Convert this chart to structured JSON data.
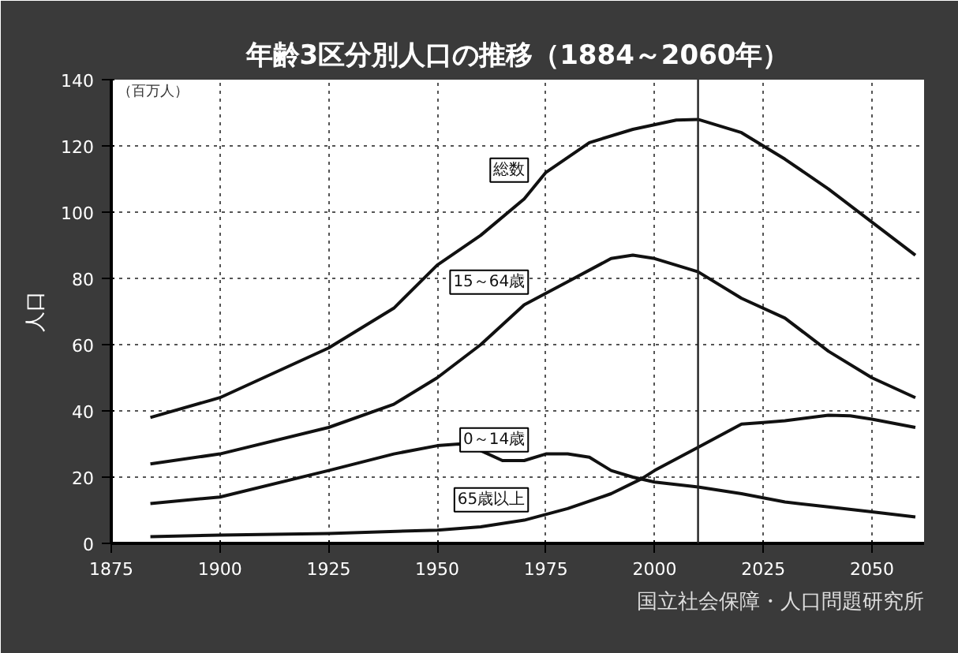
{
  "chart_data": {
    "type": "line",
    "title": "年齢3区分別人口の推移（1884～2060年）",
    "ylabel": "人口",
    "xlim": [
      1875,
      2062
    ],
    "ylim": [
      0,
      140
    ],
    "xticks": [
      1875,
      1900,
      1925,
      1950,
      1975,
      2000,
      2025,
      2050
    ],
    "yticks": [
      0,
      20,
      40,
      60,
      80,
      100,
      120,
      140
    ],
    "grid": true,
    "marker": "none",
    "line_style": "solid",
    "series": [
      {
        "name": "総数",
        "color": "#111111",
        "x": [
          1884,
          1900,
          1925,
          1940,
          1950,
          1960,
          1970,
          1975,
          1985,
          1995,
          2005,
          2010,
          2020,
          2030,
          2040,
          2050,
          2060
        ],
        "values": [
          38,
          44,
          59,
          71,
          84,
          93,
          104,
          112,
          121,
          125,
          127.8,
          128,
          124,
          116,
          107,
          97,
          87
        ]
      },
      {
        "name": "15～64歳",
        "color": "#111111",
        "x": [
          1884,
          1900,
          1925,
          1940,
          1950,
          1960,
          1970,
          1980,
          1990,
          1995,
          2000,
          2010,
          2020,
          2030,
          2040,
          2050,
          2060
        ],
        "values": [
          24,
          27,
          35,
          42,
          50,
          60,
          72,
          79,
          86,
          87,
          86,
          82,
          74,
          68,
          58,
          50,
          44
        ]
      },
      {
        "name": "0～14歳",
        "color": "#111111",
        "x": [
          1884,
          1900,
          1925,
          1940,
          1950,
          1955,
          1960,
          1965,
          1970,
          1975,
          1980,
          1985,
          1990,
          1995,
          2000,
          2010,
          2020,
          2030,
          2040,
          2050,
          2060
        ],
        "values": [
          12,
          14,
          22,
          27,
          29.5,
          30,
          28,
          25,
          25,
          27,
          27,
          26,
          22,
          20,
          18.5,
          17,
          15,
          12.5,
          11,
          9.5,
          8
        ]
      },
      {
        "name": "65歳以上",
        "color": "#111111",
        "x": [
          1884,
          1900,
          1925,
          1950,
          1960,
          1970,
          1980,
          1990,
          1997,
          2000,
          2010,
          2020,
          2025,
          2030,
          2040,
          2045,
          2050,
          2060
        ],
        "values": [
          2,
          2.5,
          3,
          4,
          5,
          7,
          10.5,
          15,
          19.5,
          22,
          29,
          36,
          36.5,
          37,
          38.7,
          38.5,
          37.5,
          35
        ]
      }
    ],
    "ref_lines": [
      {
        "axis": "x",
        "value": 2010,
        "color": "#222222",
        "line_style": "solid"
      }
    ],
    "annotations": [
      "（百万人）",
      "国立社会保障・人口問題研究所"
    ]
  }
}
